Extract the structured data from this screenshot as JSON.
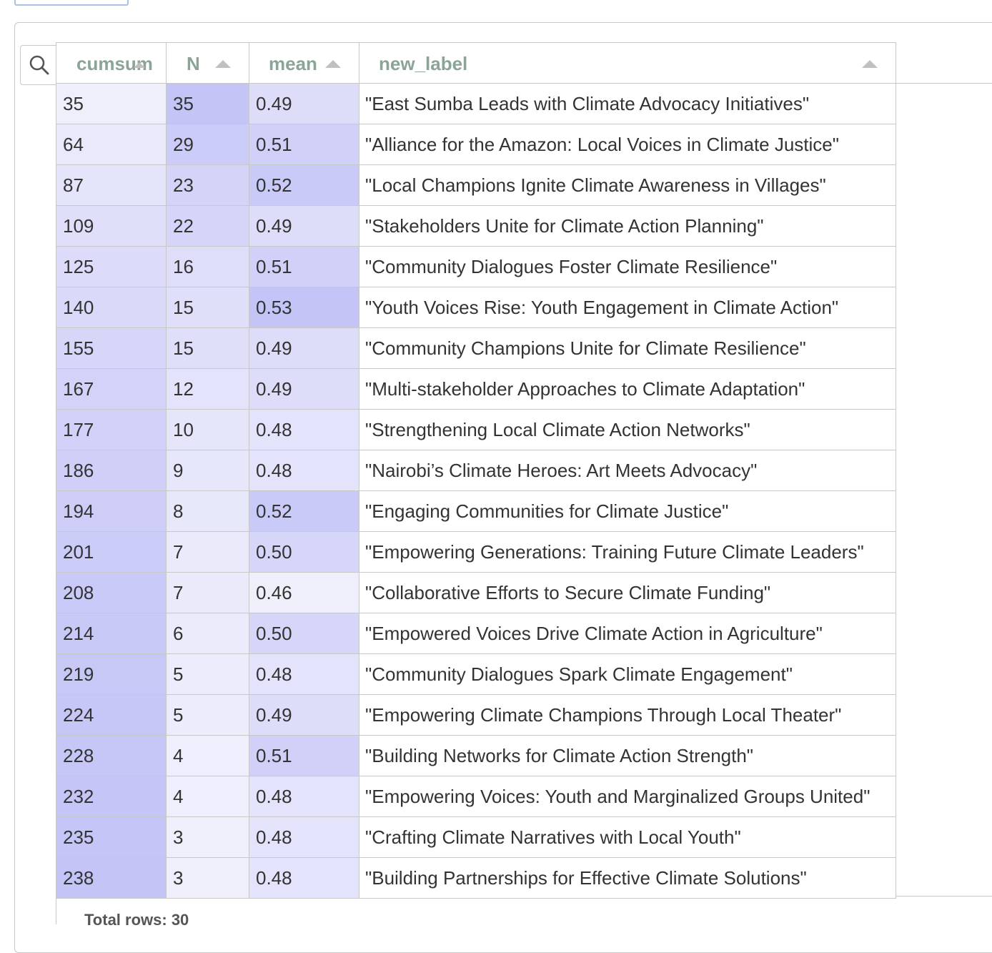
{
  "table": {
    "columns": [
      {
        "key": "cumsum",
        "label": "cumsum"
      },
      {
        "key": "N",
        "label": "N"
      },
      {
        "key": "mean",
        "label": "mean"
      },
      {
        "key": "new_label",
        "label": "new_label"
      }
    ],
    "rows": [
      {
        "cumsum": "35",
        "N": "35",
        "mean": "0.49",
        "new_label": "\"East Sumba Leads with Climate Advocacy Initiatives\""
      },
      {
        "cumsum": "64",
        "N": "29",
        "mean": "0.51",
        "new_label": "\"Alliance for the Amazon: Local Voices in Climate Justice\""
      },
      {
        "cumsum": "87",
        "N": "23",
        "mean": "0.52",
        "new_label": "\"Local Champions Ignite Climate Awareness in Villages\""
      },
      {
        "cumsum": "109",
        "N": "22",
        "mean": "0.49",
        "new_label": "\"Stakeholders Unite for Climate Action Planning\""
      },
      {
        "cumsum": "125",
        "N": "16",
        "mean": "0.51",
        "new_label": "\"Community Dialogues Foster Climate Resilience\""
      },
      {
        "cumsum": "140",
        "N": "15",
        "mean": "0.53",
        "new_label": "\"Youth Voices Rise: Youth Engagement in Climate Action\""
      },
      {
        "cumsum": "155",
        "N": "15",
        "mean": "0.49",
        "new_label": "\"Community Champions Unite for Climate Resilience\""
      },
      {
        "cumsum": "167",
        "N": "12",
        "mean": "0.49",
        "new_label": "\"Multi-stakeholder Approaches to Climate Adaptation\""
      },
      {
        "cumsum": "177",
        "N": "10",
        "mean": "0.48",
        "new_label": "\"Strengthening Local Climate Action Networks\""
      },
      {
        "cumsum": "186",
        "N": "9",
        "mean": "0.48",
        "new_label": "\"Nairobi’s Climate Heroes: Art Meets Advocacy\""
      },
      {
        "cumsum": "194",
        "N": "8",
        "mean": "0.52",
        "new_label": "\"Engaging Communities for Climate Justice\""
      },
      {
        "cumsum": "201",
        "N": "7",
        "mean": "0.50",
        "new_label": "\"Empowering Generations: Training Future Climate Leaders\""
      },
      {
        "cumsum": "208",
        "N": "7",
        "mean": "0.46",
        "new_label": "\"Collaborative Efforts to Secure Climate Funding\""
      },
      {
        "cumsum": "214",
        "N": "6",
        "mean": "0.50",
        "new_label": "\"Empowered Voices Drive Climate Action in Agriculture\""
      },
      {
        "cumsum": "219",
        "N": "5",
        "mean": "0.48",
        "new_label": "\"Community Dialogues Spark Climate Engagement\""
      },
      {
        "cumsum": "224",
        "N": "5",
        "mean": "0.49",
        "new_label": "\"Empowering Climate Champions Through Local Theater\""
      },
      {
        "cumsum": "228",
        "N": "4",
        "mean": "0.51",
        "new_label": "\"Building Networks for Climate Action Strength\""
      },
      {
        "cumsum": "232",
        "N": "4",
        "mean": "0.48",
        "new_label": "\"Empowering Voices: Youth and Marginalized Groups United\""
      },
      {
        "cumsum": "235",
        "N": "3",
        "mean": "0.48",
        "new_label": "\"Crafting Climate Narratives with Local Youth\""
      },
      {
        "cumsum": "238",
        "N": "3",
        "mean": "0.48",
        "new_label": "\"Building Partnerships for Effective Climate Solutions\""
      }
    ],
    "footer": "Total rows: 30"
  },
  "colors": {
    "header_text": "#8aa595",
    "border": "#c8c8c8",
    "gradient_low": "#efeffc",
    "gradient_high": "#c4c4f7"
  },
  "icons": {
    "search": "search-icon",
    "sort": "sort-ascending-icon"
  }
}
